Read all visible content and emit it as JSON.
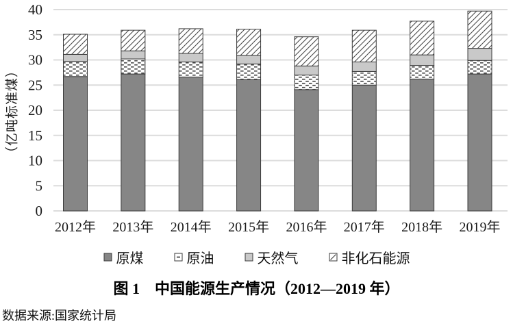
{
  "figure": {
    "title": "图 1　中国能源生产情况（2012—2019 年）",
    "source": "数据来源:国家统计局"
  },
  "chart_data": {
    "type": "bar",
    "stacked": true,
    "title": "图 1　中国能源生产情况（2012—2019 年）",
    "y_axis_title": "（亿吨标准煤）",
    "xlabel": "",
    "ylabel": "（亿吨标准煤）",
    "ylim": [
      0,
      40
    ],
    "yticks": [
      0,
      5,
      10,
      15,
      20,
      25,
      30,
      35,
      40
    ],
    "grid": true,
    "legend_position": "bottom",
    "categories": [
      "2012年",
      "2013年",
      "2014年",
      "2015年",
      "2016年",
      "2017年",
      "2018年",
      "2019年"
    ],
    "series": [
      {
        "name": "原煤",
        "style": "solid-dark",
        "color": "#868686",
        "values": [
          26.7,
          27.2,
          26.6,
          26.1,
          24.1,
          25.0,
          26.2,
          27.2
        ]
      },
      {
        "name": "原油",
        "style": "dash-pattern",
        "color": "#ffffff",
        "values": [
          3.0,
          3.0,
          3.0,
          3.1,
          2.9,
          2.7,
          2.7,
          2.7
        ]
      },
      {
        "name": "天然气",
        "style": "solid-light",
        "color": "#c9c9c9",
        "values": [
          1.4,
          1.6,
          1.7,
          1.7,
          1.8,
          1.9,
          2.1,
          2.4
        ]
      },
      {
        "name": "非化石能源",
        "style": "diagonal-hatch",
        "color": "#ffffff",
        "values": [
          4.0,
          4.1,
          4.9,
          5.2,
          5.8,
          6.3,
          6.7,
          7.4
        ]
      }
    ],
    "totals": [
      35.1,
      35.9,
      36.2,
      36.1,
      34.6,
      35.9,
      37.7,
      39.7
    ]
  },
  "style_colors": {
    "segment_border": "#3a3a3a",
    "gridline": "#dcdcdc",
    "pattern_ink": "#4a4a4a",
    "text": "#1a1a1a"
  }
}
